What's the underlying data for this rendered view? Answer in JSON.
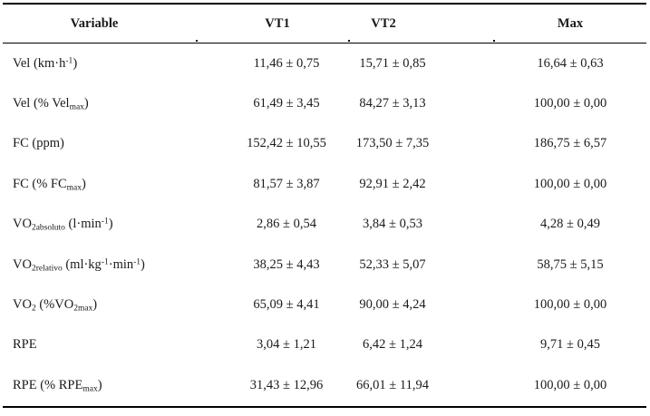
{
  "page": {
    "background_color": "#ffffff",
    "text_color": "#1a1a1a",
    "rule_color": "#000000"
  },
  "table": {
    "columns": [
      {
        "id": "variable",
        "label": "Variable"
      },
      {
        "id": "vt1",
        "label": "VT1"
      },
      {
        "id": "vt2",
        "label": "VT2"
      },
      {
        "id": "max",
        "label": "Max"
      }
    ],
    "rows": [
      {
        "variable": [
          {
            "t": "Vel (km·h",
            "s": "normal"
          },
          {
            "t": "-1",
            "s": "sup"
          },
          {
            "t": ")",
            "s": "normal"
          }
        ],
        "vt1": "11,46 ± 0,75",
        "vt2": "15,71 ± 0,85",
        "max": "16,64 ± 0,63"
      },
      {
        "variable": [
          {
            "t": "Vel (% Vel",
            "s": "normal"
          },
          {
            "t": "max",
            "s": "sub"
          },
          {
            "t": ")",
            "s": "normal"
          }
        ],
        "vt1": "61,49 ± 3,45",
        "vt2": "84,27 ± 3,13",
        "max": "100,00 ± 0,00"
      },
      {
        "variable": [
          {
            "t": "FC (ppm)",
            "s": "normal"
          }
        ],
        "vt1": "152,42 ± 10,55",
        "vt2": "173,50 ± 7,35",
        "max": "186,75 ± 6,57"
      },
      {
        "variable": [
          {
            "t": "FC (% FC",
            "s": "normal"
          },
          {
            "t": "max",
            "s": "sub"
          },
          {
            "t": ")",
            "s": "normal"
          }
        ],
        "vt1": "81,57 ± 3,87",
        "vt2": "92,91 ± 2,42",
        "max": "100,00 ± 0,00"
      },
      {
        "variable": [
          {
            "t": "VO",
            "s": "normal"
          },
          {
            "t": "2absoluto",
            "s": "sub"
          },
          {
            "t": " (l·min",
            "s": "normal"
          },
          {
            "t": "-1",
            "s": "sup"
          },
          {
            "t": ")",
            "s": "normal"
          }
        ],
        "vt1": "2,86 ± 0,54",
        "vt2": "3,84 ± 0,53",
        "max": "4,28 ± 0,49"
      },
      {
        "variable": [
          {
            "t": "VO",
            "s": "normal"
          },
          {
            "t": "2relativo",
            "s": "sub"
          },
          {
            "t": " (ml·kg",
            "s": "normal"
          },
          {
            "t": "-1",
            "s": "sup"
          },
          {
            "t": "·min",
            "s": "normal"
          },
          {
            "t": "-1",
            "s": "sup"
          },
          {
            "t": ")",
            "s": "normal"
          }
        ],
        "vt1": "38,25 ± 4,43",
        "vt2": "52,33 ± 5,07",
        "max": "58,75 ± 5,15"
      },
      {
        "variable": [
          {
            "t": "VO",
            "s": "normal"
          },
          {
            "t": "2",
            "s": "sub"
          },
          {
            "t": " (%VO",
            "s": "normal"
          },
          {
            "t": "2max",
            "s": "sub"
          },
          {
            "t": ")",
            "s": "normal"
          }
        ],
        "vt1": "65,09 ± 4,41",
        "vt2": "90,00 ± 4,24",
        "max": "100,00 ± 0,00"
      },
      {
        "variable": [
          {
            "t": "RPE",
            "s": "normal"
          }
        ],
        "vt1": "3,04 ± 1,21",
        "vt2": "6,42 ± 1,24",
        "max": "9,71 ± 0,45"
      },
      {
        "variable": [
          {
            "t": "RPE (% RPE",
            "s": "normal"
          },
          {
            "t": "max",
            "s": "sub"
          },
          {
            "t": ")",
            "s": "normal"
          }
        ],
        "vt1": "31,43 ± 12,96",
        "vt2": "66,01 ± 11,94",
        "max": "100,00 ± 0,00"
      }
    ]
  }
}
